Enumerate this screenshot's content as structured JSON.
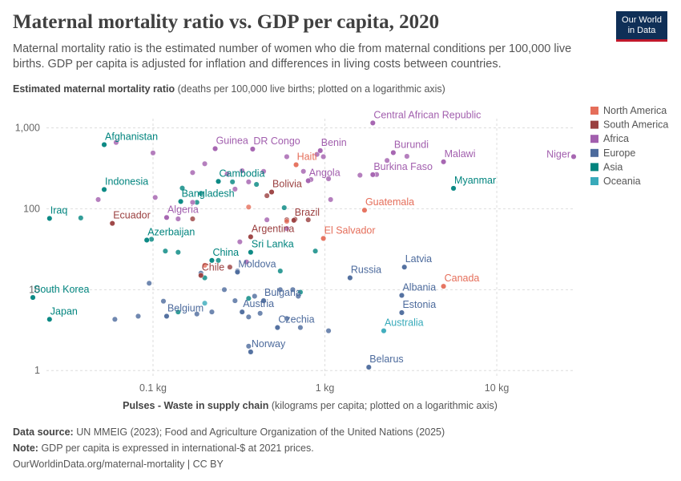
{
  "header": {
    "title": "Maternal mortality ratio vs. GDP per capita, 2020",
    "subtitle": "Maternal mortality ratio is the estimated number of women who die from maternal conditions per 100,000 live births. GDP per capita is adjusted for inflation and differences in living costs between countries.",
    "logo_line1": "Our World",
    "logo_line2": "in Data"
  },
  "footer": {
    "source_label": "Data source:",
    "source_text": "UN MMEIG (2023); Food and Agriculture Organization of the United Nations (2025)",
    "note_label": "Note:",
    "note_text": "GDP per capita is expressed in international-$ at 2021 prices.",
    "url": "OurWorldinData.org/maternal-mortality | CC BY"
  },
  "colors": {
    "North America": "#e56e5a",
    "South America": "#9a3f3f",
    "Africa": "#a25fae",
    "Europe": "#4c6a9c",
    "Asia": "#00847e",
    "Oceania": "#38aaba"
  },
  "chart_data": {
    "type": "scatter",
    "y_title": "Estimated maternal mortality ratio",
    "y_title_note": "(deaths per 100,000 live births; plotted on a logarithmic axis)",
    "x_title": "Pulses - Waste in supply chain",
    "x_title_note": "(kilograms per capita; plotted on a logarithmic axis)",
    "x_scale": "log",
    "y_scale": "log",
    "xlim": [
      0.024,
      28
    ],
    "ylim": [
      0.8,
      1300
    ],
    "x_ticks": [
      {
        "v": 0.1,
        "label": "0.1 kg"
      },
      {
        "v": 1,
        "label": "1 kg"
      },
      {
        "v": 10,
        "label": "10 kg"
      }
    ],
    "y_ticks": [
      {
        "v": 1,
        "label": "1"
      },
      {
        "v": 10,
        "label": "10"
      },
      {
        "v": 100,
        "label": "100"
      },
      {
        "v": 1000,
        "label": "1,000"
      }
    ],
    "grid": true,
    "legend": [
      "North America",
      "South America",
      "Africa",
      "Europe",
      "Asia",
      "Oceania"
    ],
    "legend_position": "right",
    "points": [
      {
        "label": "Afghanistan",
        "region": "Asia",
        "x": 0.052,
        "y": 620
      },
      {
        "label": "Indonesia",
        "region": "Asia",
        "x": 0.052,
        "y": 173
      },
      {
        "label": "Iraq",
        "region": "Asia",
        "x": 0.025,
        "y": 76
      },
      {
        "label": "South Korea",
        "region": "Asia",
        "x": 0.02,
        "y": 8
      },
      {
        "label": "Japan",
        "region": "Asia",
        "x": 0.025,
        "y": 4.3
      },
      {
        "label": "Bangladesh",
        "region": "Asia",
        "x": 0.145,
        "y": 123
      },
      {
        "label": "Cambodia",
        "region": "Asia",
        "x": 0.24,
        "y": 218
      },
      {
        "label": "Azerbaijan",
        "region": "Asia",
        "x": 0.092,
        "y": 41
      },
      {
        "label": "China",
        "region": "Asia",
        "x": 0.22,
        "y": 23
      },
      {
        "label": "Sri Lanka",
        "region": "Asia",
        "x": 0.37,
        "y": 29
      },
      {
        "label": "Myanmar",
        "region": "Asia",
        "x": 5.6,
        "y": 179
      },
      {
        "label": "Ecuador",
        "region": "South America",
        "x": 0.058,
        "y": 66
      },
      {
        "label": "Chile",
        "region": "South America",
        "x": 0.19,
        "y": 15
      },
      {
        "label": "Bolivia",
        "region": "South America",
        "x": 0.49,
        "y": 161
      },
      {
        "label": "Brazil",
        "region": "South America",
        "x": 0.66,
        "y": 72
      },
      {
        "label": "Argentina",
        "region": "South America",
        "x": 0.37,
        "y": 45
      },
      {
        "label": "Haiti",
        "region": "North America",
        "x": 0.68,
        "y": 350
      },
      {
        "label": "Guatemala",
        "region": "North America",
        "x": 1.7,
        "y": 96
      },
      {
        "label": "El Salvador",
        "region": "North America",
        "x": 0.98,
        "y": 43
      },
      {
        "label": "Canada",
        "region": "North America",
        "x": 4.9,
        "y": 11
      },
      {
        "label": "Central African Republic",
        "region": "Africa",
        "x": 1.9,
        "y": 1150
      },
      {
        "label": "Guinea",
        "region": "Africa",
        "x": 0.23,
        "y": 553
      },
      {
        "label": "DR Congo",
        "region": "Africa",
        "x": 0.38,
        "y": 547
      },
      {
        "label": "Benin",
        "region": "Africa",
        "x": 0.94,
        "y": 523
      },
      {
        "label": "Burundi",
        "region": "Africa",
        "x": 2.5,
        "y": 494
      },
      {
        "label": "Malawi",
        "region": "Africa",
        "x": 4.9,
        "y": 381
      },
      {
        "label": "Niger",
        "region": "Africa",
        "x": 28,
        "y": 441
      },
      {
        "label": "Burkina Faso",
        "region": "Africa",
        "x": 1.9,
        "y": 264
      },
      {
        "label": "Angola",
        "region": "Africa",
        "x": 0.8,
        "y": 222
      },
      {
        "label": "Algeria",
        "region": "Africa",
        "x": 0.12,
        "y": 78
      },
      {
        "label": "Moldova",
        "region": "Europe",
        "x": 0.31,
        "y": 16.5
      },
      {
        "label": "Bulgaria",
        "region": "Europe",
        "x": 0.44,
        "y": 7.3
      },
      {
        "label": "Austria",
        "region": "Europe",
        "x": 0.33,
        "y": 5.3
      },
      {
        "label": "Belgium",
        "region": "Europe",
        "x": 0.12,
        "y": 4.7
      },
      {
        "label": "Czechia",
        "region": "Europe",
        "x": 0.53,
        "y": 3.4
      },
      {
        "label": "Norway",
        "region": "Europe",
        "x": 0.37,
        "y": 1.7
      },
      {
        "label": "Russia",
        "region": "Europe",
        "x": 1.4,
        "y": 14
      },
      {
        "label": "Latvia",
        "region": "Europe",
        "x": 2.9,
        "y": 19
      },
      {
        "label": "Albania",
        "region": "Europe",
        "x": 2.8,
        "y": 8.5
      },
      {
        "label": "Estonia",
        "region": "Europe",
        "x": 2.8,
        "y": 5.2
      },
      {
        "label": "Belarus",
        "region": "Europe",
        "x": 1.8,
        "y": 1.1
      },
      {
        "label": "Australia",
        "region": "Oceania",
        "x": 2.2,
        "y": 3.1
      },
      {
        "label": "",
        "region": "Asia",
        "x": 0.038,
        "y": 77
      },
      {
        "label": "",
        "region": "Asia",
        "x": 0.098,
        "y": 42
      },
      {
        "label": "",
        "region": "Asia",
        "x": 0.118,
        "y": 30
      },
      {
        "label": "",
        "region": "Asia",
        "x": 0.14,
        "y": 29
      },
      {
        "label": "",
        "region": "Asia",
        "x": 0.148,
        "y": 180
      },
      {
        "label": "",
        "region": "Asia",
        "x": 0.18,
        "y": 120
      },
      {
        "label": "",
        "region": "Asia",
        "x": 0.19,
        "y": 155
      },
      {
        "label": "",
        "region": "Asia",
        "x": 0.24,
        "y": 23
      },
      {
        "label": "",
        "region": "Asia",
        "x": 0.29,
        "y": 215
      },
      {
        "label": "",
        "region": "Asia",
        "x": 0.4,
        "y": 200
      },
      {
        "label": "",
        "region": "Asia",
        "x": 0.55,
        "y": 17
      },
      {
        "label": "",
        "region": "Asia",
        "x": 0.58,
        "y": 103
      },
      {
        "label": "",
        "region": "Asia",
        "x": 0.88,
        "y": 30
      },
      {
        "label": "",
        "region": "Asia",
        "x": 0.2,
        "y": 14
      },
      {
        "label": "",
        "region": "Asia",
        "x": 0.72,
        "y": 9.3
      },
      {
        "label": "",
        "region": "Asia",
        "x": 0.36,
        "y": 7.8
      },
      {
        "label": "",
        "region": "Asia",
        "x": 0.14,
        "y": 5.3
      },
      {
        "label": "",
        "region": "Africa",
        "x": 0.061,
        "y": 660
      },
      {
        "label": "",
        "region": "Africa",
        "x": 0.1,
        "y": 490
      },
      {
        "label": "",
        "region": "Africa",
        "x": 0.17,
        "y": 280
      },
      {
        "label": "",
        "region": "Africa",
        "x": 0.2,
        "y": 360
      },
      {
        "label": "",
        "region": "Africa",
        "x": 0.27,
        "y": 270
      },
      {
        "label": "",
        "region": "Africa",
        "x": 0.33,
        "y": 295
      },
      {
        "label": "",
        "region": "Africa",
        "x": 0.3,
        "y": 175
      },
      {
        "label": "",
        "region": "Africa",
        "x": 0.36,
        "y": 215
      },
      {
        "label": "",
        "region": "Africa",
        "x": 0.44,
        "y": 290
      },
      {
        "label": "",
        "region": "Africa",
        "x": 0.6,
        "y": 440
      },
      {
        "label": "",
        "region": "Africa",
        "x": 0.75,
        "y": 290
      },
      {
        "label": "",
        "region": "Africa",
        "x": 0.83,
        "y": 230
      },
      {
        "label": "",
        "region": "Africa",
        "x": 0.9,
        "y": 470
      },
      {
        "label": "",
        "region": "Africa",
        "x": 0.98,
        "y": 440
      },
      {
        "label": "",
        "region": "Africa",
        "x": 1.05,
        "y": 235
      },
      {
        "label": "",
        "region": "Africa",
        "x": 1.08,
        "y": 130
      },
      {
        "label": "",
        "region": "Africa",
        "x": 1.6,
        "y": 260
      },
      {
        "label": "",
        "region": "Africa",
        "x": 2.0,
        "y": 265
      },
      {
        "label": "",
        "region": "Africa",
        "x": 2.3,
        "y": 395
      },
      {
        "label": "",
        "region": "Africa",
        "x": 3.0,
        "y": 445
      },
      {
        "label": "",
        "region": "Africa",
        "x": 0.048,
        "y": 130
      },
      {
        "label": "",
        "region": "Africa",
        "x": 0.103,
        "y": 138
      },
      {
        "label": "",
        "region": "Africa",
        "x": 0.14,
        "y": 75
      },
      {
        "label": "",
        "region": "Africa",
        "x": 0.32,
        "y": 39
      },
      {
        "label": "",
        "region": "Africa",
        "x": 0.46,
        "y": 73
      },
      {
        "label": "",
        "region": "Africa",
        "x": 0.6,
        "y": 57
      },
      {
        "label": "",
        "region": "Africa",
        "x": 0.35,
        "y": 22
      },
      {
        "label": "",
        "region": "Africa",
        "x": 0.17,
        "y": 120
      },
      {
        "label": "",
        "region": "South America",
        "x": 0.17,
        "y": 75
      },
      {
        "label": "",
        "region": "South America",
        "x": 0.28,
        "y": 19
      },
      {
        "label": "",
        "region": "South America",
        "x": 0.46,
        "y": 145
      },
      {
        "label": "",
        "region": "South America",
        "x": 0.6,
        "y": 73
      },
      {
        "label": "",
        "region": "South America",
        "x": 0.67,
        "y": 74
      },
      {
        "label": "",
        "region": "South America",
        "x": 0.8,
        "y": 73
      },
      {
        "label": "",
        "region": "North America",
        "x": 0.36,
        "y": 105
      },
      {
        "label": "",
        "region": "North America",
        "x": 0.2,
        "y": 20
      },
      {
        "label": "",
        "region": "North America",
        "x": 0.6,
        "y": 70
      },
      {
        "label": "",
        "region": "Europe",
        "x": 0.095,
        "y": 12
      },
      {
        "label": "",
        "region": "Europe",
        "x": 0.115,
        "y": 7.2
      },
      {
        "label": "",
        "region": "Europe",
        "x": 0.082,
        "y": 4.7
      },
      {
        "label": "",
        "region": "Europe",
        "x": 0.06,
        "y": 4.3
      },
      {
        "label": "",
        "region": "Europe",
        "x": 0.18,
        "y": 5
      },
      {
        "label": "",
        "region": "Europe",
        "x": 0.22,
        "y": 5.3
      },
      {
        "label": "",
        "region": "Europe",
        "x": 0.26,
        "y": 10
      },
      {
        "label": "",
        "region": "Europe",
        "x": 0.3,
        "y": 7.3
      },
      {
        "label": "",
        "region": "Europe",
        "x": 0.36,
        "y": 4.6
      },
      {
        "label": "",
        "region": "Europe",
        "x": 0.39,
        "y": 8.3
      },
      {
        "label": "",
        "region": "Europe",
        "x": 0.42,
        "y": 5.1
      },
      {
        "label": "",
        "region": "Europe",
        "x": 0.55,
        "y": 10
      },
      {
        "label": "",
        "region": "Europe",
        "x": 0.6,
        "y": 4.4
      },
      {
        "label": "",
        "region": "Europe",
        "x": 0.65,
        "y": 10
      },
      {
        "label": "",
        "region": "Europe",
        "x": 0.31,
        "y": 17
      },
      {
        "label": "",
        "region": "Europe",
        "x": 0.36,
        "y": 2
      },
      {
        "label": "",
        "region": "Europe",
        "x": 0.72,
        "y": 3.4
      },
      {
        "label": "",
        "region": "Europe",
        "x": 1.05,
        "y": 3.1
      },
      {
        "label": "",
        "region": "Europe",
        "x": 0.19,
        "y": 16
      },
      {
        "label": "",
        "region": "Europe",
        "x": 0.7,
        "y": 8.3
      },
      {
        "label": "",
        "region": "Oceania",
        "x": 0.2,
        "y": 6.8
      }
    ]
  }
}
